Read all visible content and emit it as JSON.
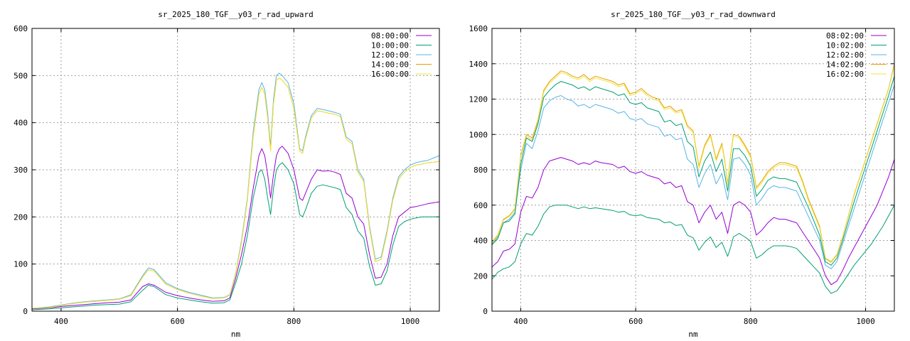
{
  "chart_data": [
    {
      "type": "line",
      "title": "sr_2025_180_TGF__y03_r_rad_upward",
      "xlabel": "nm",
      "ylabel": "",
      "xlim": [
        350,
        1050
      ],
      "ylim": [
        0,
        600
      ],
      "xticks": [
        400,
        600,
        800,
        1000
      ],
      "yticks": [
        0,
        100,
        200,
        300,
        400,
        500,
        600
      ],
      "grid": true,
      "legend": "top-right",
      "x": [
        350,
        380,
        400,
        420,
        440,
        460,
        480,
        500,
        520,
        540,
        550,
        560,
        580,
        600,
        620,
        640,
        660,
        680,
        690,
        700,
        710,
        720,
        730,
        740,
        745,
        750,
        755,
        760,
        765,
        770,
        775,
        780,
        790,
        800,
        810,
        815,
        820,
        830,
        840,
        850,
        860,
        870,
        880,
        890,
        900,
        910,
        920,
        930,
        940,
        950,
        960,
        970,
        980,
        990,
        1000,
        1010,
        1020,
        1030,
        1040,
        1050
      ],
      "series": [
        {
          "name": "08:00:00",
          "color": "#9400d3",
          "values": [
            5,
            7,
            10,
            12,
            14,
            16,
            18,
            19,
            24,
            52,
            58,
            55,
            40,
            33,
            28,
            24,
            21,
            22,
            28,
            70,
            120,
            180,
            260,
            330,
            345,
            330,
            290,
            240,
            290,
            330,
            345,
            350,
            335,
            300,
            240,
            235,
            250,
            280,
            300,
            297,
            298,
            295,
            290,
            250,
            240,
            200,
            185,
            120,
            70,
            72,
            100,
            160,
            200,
            210,
            220,
            222,
            225,
            228,
            230,
            232
          ]
        },
        {
          "name": "10:00:00",
          "color": "#009e73",
          "values": [
            3,
            5,
            7,
            9,
            11,
            13,
            14,
            15,
            20,
            44,
            55,
            52,
            35,
            28,
            24,
            20,
            17,
            18,
            24,
            60,
            100,
            160,
            240,
            295,
            300,
            280,
            240,
            205,
            260,
            300,
            310,
            315,
            300,
            270,
            205,
            200,
            215,
            250,
            265,
            268,
            265,
            262,
            258,
            220,
            205,
            170,
            155,
            95,
            55,
            58,
            85,
            140,
            180,
            190,
            195,
            198,
            200,
            200,
            200,
            200
          ]
        },
        {
          "name": "12:00:00",
          "color": "#56b4e9",
          "values": [
            6,
            9,
            13,
            17,
            20,
            22,
            24,
            26,
            35,
            75,
            92,
            88,
            60,
            48,
            40,
            34,
            28,
            29,
            35,
            80,
            150,
            240,
            380,
            470,
            485,
            470,
            420,
            350,
            450,
            500,
            505,
            500,
            485,
            440,
            345,
            340,
            370,
            415,
            430,
            428,
            425,
            422,
            418,
            370,
            360,
            300,
            280,
            180,
            110,
            115,
            170,
            240,
            285,
            300,
            310,
            315,
            318,
            320,
            325,
            330
          ]
        },
        {
          "name": "14:00:00",
          "color": "#e69f00",
          "values": [
            6,
            8,
            12,
            16,
            19,
            21,
            23,
            25,
            33,
            72,
            88,
            85,
            57,
            46,
            38,
            32,
            27,
            28,
            34,
            78,
            145,
            235,
            370,
            460,
            475,
            460,
            410,
            340,
            440,
            490,
            495,
            490,
            475,
            430,
            340,
            335,
            365,
            410,
            425,
            423,
            420,
            418,
            413,
            365,
            355,
            295,
            275,
            175,
            105,
            110,
            165,
            235,
            280,
            295,
            305,
            310,
            312,
            315,
            316,
            318
          ]
        },
        {
          "name": "16:00:00",
          "color": "#f0e442",
          "values": [
            6,
            8,
            12,
            16,
            19,
            21,
            23,
            25,
            33,
            72,
            88,
            85,
            57,
            46,
            38,
            32,
            27,
            28,
            34,
            78,
            145,
            235,
            370,
            460,
            475,
            460,
            410,
            340,
            440,
            490,
            495,
            490,
            475,
            430,
            340,
            335,
            365,
            410,
            425,
            423,
            420,
            418,
            413,
            365,
            355,
            295,
            275,
            175,
            105,
            110,
            165,
            235,
            280,
            295,
            305,
            310,
            312,
            315,
            316,
            318
          ]
        }
      ]
    },
    {
      "type": "line",
      "title": "sr_2025_180_TGF__y03_r_rad_downward",
      "xlabel": "nm",
      "ylabel": "",
      "xlim": [
        350,
        1050
      ],
      "ylim": [
        0,
        1600
      ],
      "xticks": [
        400,
        600,
        800,
        1000
      ],
      "yticks": [
        0,
        200,
        400,
        600,
        800,
        1000,
        1200,
        1400,
        1600
      ],
      "grid": true,
      "legend": "top-right",
      "x": [
        350,
        360,
        370,
        380,
        390,
        400,
        410,
        420,
        430,
        440,
        450,
        460,
        470,
        480,
        490,
        500,
        510,
        520,
        530,
        540,
        550,
        560,
        570,
        580,
        590,
        600,
        610,
        620,
        630,
        640,
        650,
        660,
        670,
        680,
        690,
        700,
        710,
        720,
        730,
        740,
        750,
        755,
        760,
        765,
        770,
        780,
        790,
        800,
        810,
        820,
        830,
        840,
        850,
        860,
        870,
        880,
        890,
        900,
        910,
        920,
        930,
        940,
        950,
        960,
        970,
        980,
        990,
        1000,
        1010,
        1020,
        1030,
        1040,
        1050
      ],
      "series": [
        {
          "name": "08:02:00",
          "color": "#9400d3",
          "values": [
            250,
            280,
            340,
            350,
            380,
            560,
            650,
            640,
            700,
            800,
            850,
            860,
            870,
            860,
            850,
            830,
            840,
            830,
            850,
            840,
            835,
            830,
            810,
            820,
            790,
            780,
            790,
            770,
            760,
            750,
            720,
            730,
            700,
            710,
            620,
            600,
            500,
            560,
            600,
            520,
            560,
            500,
            440,
            520,
            600,
            620,
            600,
            560,
            430,
            460,
            500,
            530,
            520,
            520,
            510,
            500,
            450,
            400,
            350,
            300,
            200,
            150,
            170,
            230,
            300,
            360,
            420,
            480,
            540,
            600,
            680,
            760,
            860
          ]
        },
        {
          "name": "10:02:00",
          "color": "#009e73",
          "values": [
            180,
            220,
            240,
            250,
            280,
            380,
            440,
            430,
            480,
            550,
            590,
            600,
            600,
            600,
            590,
            580,
            590,
            580,
            585,
            580,
            575,
            570,
            560,
            565,
            545,
            540,
            545,
            530,
            525,
            520,
            500,
            505,
            485,
            490,
            430,
            415,
            345,
            390,
            420,
            360,
            390,
            350,
            310,
            360,
            420,
            440,
            420,
            395,
            300,
            320,
            350,
            370,
            370,
            370,
            365,
            355,
            320,
            285,
            250,
            215,
            140,
            100,
            115,
            160,
            210,
            260,
            300,
            340,
            380,
            430,
            480,
            540,
            600
          ]
        },
        {
          "name": "12:02:00",
          "color": "#56b4e9",
          "values": [
            380,
            420,
            500,
            520,
            560,
            800,
            950,
            920,
            1020,
            1150,
            1190,
            1210,
            1220,
            1200,
            1190,
            1160,
            1170,
            1150,
            1170,
            1160,
            1150,
            1140,
            1120,
            1130,
            1090,
            1080,
            1090,
            1060,
            1050,
            1040,
            990,
            1000,
            970,
            980,
            860,
            830,
            700,
            780,
            830,
            720,
            780,
            700,
            630,
            740,
            860,
            870,
            830,
            770,
            600,
            640,
            690,
            710,
            700,
            700,
            690,
            680,
            610,
            540,
            470,
            400,
            260,
            240,
            280,
            380,
            480,
            580,
            680,
            780,
            880,
            980,
            1080,
            1180,
            1280
          ]
        },
        {
          "name": "14:02:00",
          "color": "#e69f00",
          "values": [
            390,
            430,
            520,
            540,
            580,
            880,
            1000,
            980,
            1080,
            1250,
            1300,
            1330,
            1360,
            1350,
            1330,
            1320,
            1340,
            1310,
            1330,
            1320,
            1310,
            1300,
            1280,
            1290,
            1230,
            1240,
            1260,
            1230,
            1210,
            1200,
            1150,
            1160,
            1130,
            1140,
            1050,
            1020,
            820,
            940,
            1000,
            860,
            950,
            850,
            720,
            880,
            1000,
            990,
            940,
            880,
            700,
            740,
            790,
            820,
            840,
            840,
            830,
            820,
            740,
            640,
            560,
            480,
            300,
            280,
            320,
            420,
            540,
            660,
            760,
            860,
            960,
            1060,
            1160,
            1260,
            1400
          ]
        },
        {
          "name": "16:02:00",
          "color": "#f0e442",
          "values": [
            385,
            425,
            515,
            535,
            575,
            870,
            990,
            970,
            1070,
            1240,
            1290,
            1320,
            1350,
            1340,
            1320,
            1310,
            1330,
            1300,
            1320,
            1310,
            1300,
            1290,
            1270,
            1280,
            1220,
            1230,
            1250,
            1220,
            1200,
            1190,
            1140,
            1150,
            1120,
            1130,
            1040,
            1010,
            810,
            930,
            990,
            850,
            940,
            840,
            710,
            870,
            990,
            980,
            930,
            870,
            690,
            730,
            780,
            810,
            830,
            830,
            820,
            810,
            730,
            630,
            550,
            470,
            295,
            275,
            315,
            415,
            535,
            655,
            755,
            855,
            955,
            1055,
            1155,
            1255,
            1390
          ]
        },
        {
          "name": "",
          "color": "#009e73",
          "values": [
            375,
            410,
            500,
            510,
            550,
            830,
            980,
            960,
            1060,
            1210,
            1250,
            1280,
            1300,
            1290,
            1280,
            1260,
            1270,
            1250,
            1270,
            1260,
            1250,
            1240,
            1220,
            1230,
            1180,
            1170,
            1180,
            1150,
            1140,
            1130,
            1070,
            1080,
            1050,
            1060,
            960,
            930,
            760,
            850,
            900,
            790,
            860,
            770,
            680,
            800,
            920,
            920,
            880,
            820,
            650,
            690,
            740,
            760,
            750,
            750,
            740,
            730,
            660,
            590,
            510,
            430,
            280,
            260,
            300,
            400,
            510,
            620,
            720,
            820,
            920,
            1020,
            1120,
            1220,
            1330
          ]
        }
      ]
    }
  ]
}
